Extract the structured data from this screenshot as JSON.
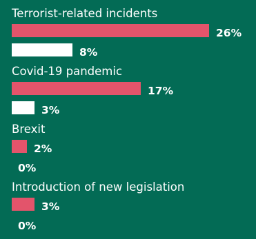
{
  "chart_data": {
    "type": "bar",
    "orientation": "horizontal",
    "categories": [
      "Terrorist-related incidents",
      "Covid-19 pandemic",
      "Brexit",
      "Introduction of new legislation"
    ],
    "series": [
      {
        "color": "#e3546b",
        "values": [
          26,
          17,
          2,
          3
        ]
      },
      {
        "color": "#ffffff",
        "values": [
          8,
          3,
          0,
          0
        ]
      }
    ],
    "value_suffix": "%",
    "xlim": [
      0,
      26
    ],
    "grid": false,
    "legend": "none"
  },
  "colors": {
    "background": "#036b55",
    "text": "#ffffff"
  }
}
